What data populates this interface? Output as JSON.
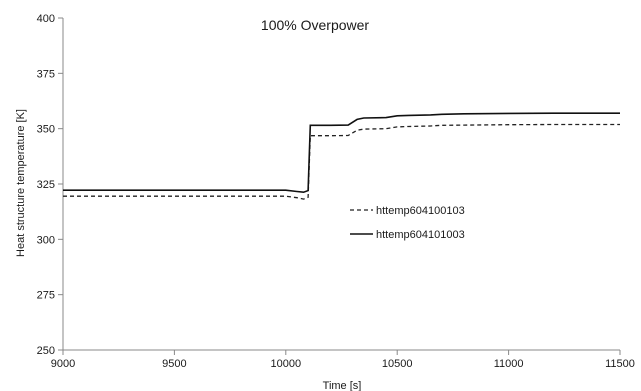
{
  "chart_data": {
    "type": "line",
    "title": "100% Overpower",
    "xlabel": "Time [s]",
    "ylabel": "Heat structure temperature [K]",
    "xlim": [
      9000,
      11500
    ],
    "ylim": [
      250,
      400
    ],
    "xticks": [
      9000,
      9500,
      10000,
      10500,
      11000,
      11500
    ],
    "yticks": [
      250,
      275,
      300,
      325,
      350,
      375,
      400
    ],
    "grid": false,
    "legend_position": "center-right",
    "series": [
      {
        "name": "httemp604100103",
        "style": "dashed",
        "color": "#222222",
        "points": [
          [
            9000,
            319.5
          ],
          [
            9500,
            319.5
          ],
          [
            10000,
            319.5
          ],
          [
            10050,
            318.8
          ],
          [
            10080,
            318.2
          ],
          [
            10100,
            319
          ],
          [
            10105,
            333
          ],
          [
            10110,
            346.8
          ],
          [
            10200,
            346.8
          ],
          [
            10280,
            346.9
          ],
          [
            10320,
            349.3
          ],
          [
            10350,
            349.8
          ],
          [
            10450,
            350
          ],
          [
            10500,
            350.8
          ],
          [
            10550,
            351
          ],
          [
            10650,
            351.2
          ],
          [
            10700,
            351.5
          ],
          [
            10800,
            351.6
          ],
          [
            11000,
            351.8
          ],
          [
            11200,
            351.9
          ],
          [
            11500,
            351.9
          ]
        ]
      },
      {
        "name": "httemp604101003",
        "style": "solid",
        "color": "#111111",
        "points": [
          [
            9000,
            322.2
          ],
          [
            9500,
            322.2
          ],
          [
            10000,
            322.2
          ],
          [
            10050,
            321.6
          ],
          [
            10080,
            321.3
          ],
          [
            10100,
            322
          ],
          [
            10105,
            337
          ],
          [
            10110,
            351.5
          ],
          [
            10200,
            351.5
          ],
          [
            10280,
            351.6
          ],
          [
            10320,
            354.2
          ],
          [
            10350,
            354.8
          ],
          [
            10450,
            355
          ],
          [
            10500,
            355.8
          ],
          [
            10550,
            356
          ],
          [
            10650,
            356.2
          ],
          [
            10700,
            356.5
          ],
          [
            10800,
            356.7
          ],
          [
            11000,
            356.9
          ],
          [
            11200,
            357
          ],
          [
            11500,
            357
          ]
        ]
      }
    ]
  }
}
